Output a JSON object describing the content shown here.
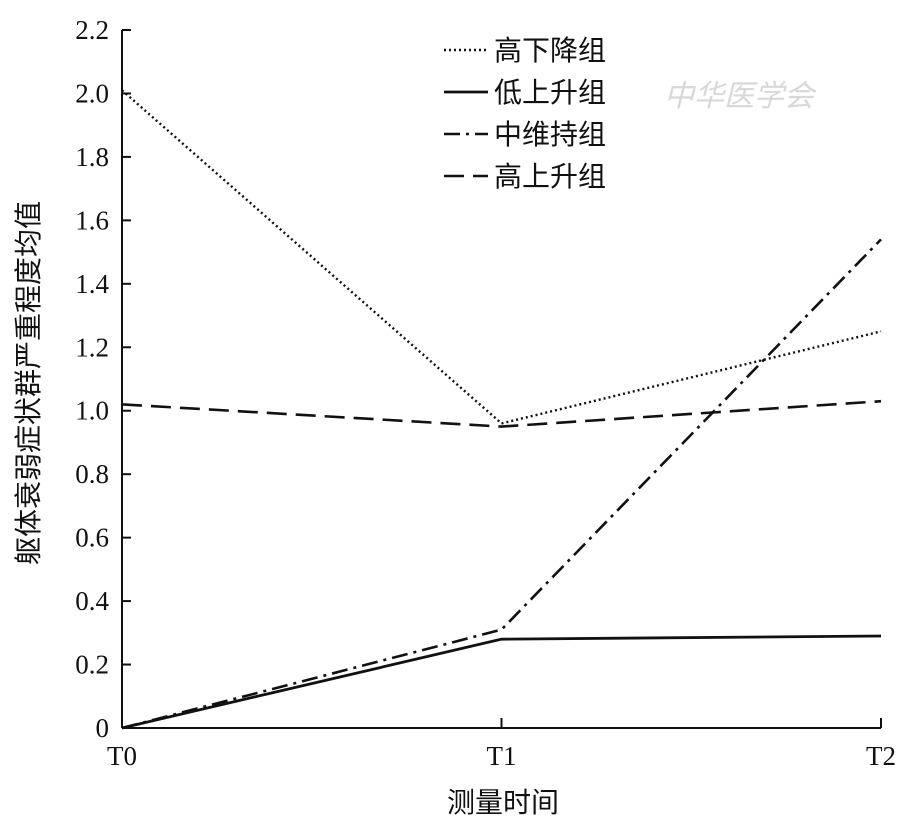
{
  "chart_data": {
    "type": "line",
    "title": "",
    "xlabel": "测量时间",
    "ylabel": "躯体衰弱症状群严重程度均值",
    "categories": [
      "T0",
      "T1",
      "T2"
    ],
    "ylim": [
      0,
      2.2
    ],
    "yticks": [
      "0",
      "0.2",
      "0.4",
      "0.6",
      "0.8",
      "1.0",
      "1.2",
      "1.4",
      "1.6",
      "1.8",
      "2.0",
      "2.2"
    ],
    "legend_position": "top-center",
    "grid": false,
    "series": [
      {
        "name": "高下降组",
        "values": [
          2.01,
          0.96,
          1.25
        ],
        "style": "dotted"
      },
      {
        "name": "低上升组",
        "values": [
          0.0,
          0.28,
          0.29
        ],
        "style": "solid"
      },
      {
        "name": "中维持组",
        "values": [
          0.0,
          0.31,
          1.54
        ],
        "style": "dashdot"
      },
      {
        "name": "高上升组",
        "values": [
          1.02,
          0.95,
          1.03
        ],
        "style": "dashed"
      }
    ]
  },
  "watermark": "中华医学会"
}
